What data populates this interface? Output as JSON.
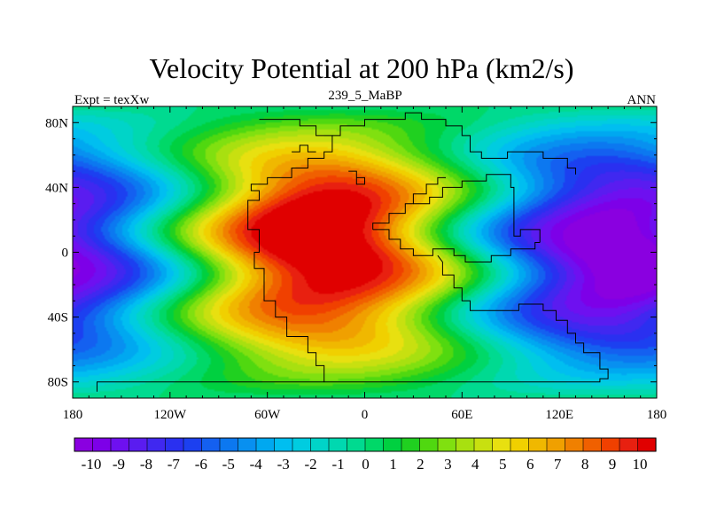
{
  "chart_data": {
    "type": "heatmap",
    "title": "Velocity Potential at 200 hPa (km2/s)",
    "subtitle_left": "Expt = texXw",
    "subtitle_center": "239_5_MaBP",
    "subtitle_right": "ANN",
    "x_range": [
      -180,
      180
    ],
    "y_range": [
      -90,
      90
    ],
    "x_ticks": [
      {
        "value": -180,
        "label": "180"
      },
      {
        "value": -120,
        "label": "120W"
      },
      {
        "value": -60,
        "label": "60W"
      },
      {
        "value": 0,
        "label": "0"
      },
      {
        "value": 60,
        "label": "60E"
      },
      {
        "value": 120,
        "label": "120E"
      },
      {
        "value": 180,
        "label": "180"
      }
    ],
    "y_ticks": [
      {
        "value": 80,
        "label": "80N"
      },
      {
        "value": 40,
        "label": "40N"
      },
      {
        "value": 0,
        "label": "0"
      },
      {
        "value": -40,
        "label": "40S"
      },
      {
        "value": -80,
        "label": "80S"
      }
    ],
    "field": {
      "description_of_peaks_in_data_units": "max near lon -25, lat 20; min near lon 165, lat -5",
      "max_center": {
        "lon": -25,
        "lat": 20,
        "value": 10.5
      },
      "min_center": {
        "lon": 165,
        "lat": -5,
        "value": -10.5
      }
    },
    "colorbar": {
      "ticks": [
        -10,
        -9,
        -8,
        -7,
        -6,
        -5,
        -4,
        -3,
        -2,
        -1,
        0,
        1,
        2,
        3,
        4,
        5,
        6,
        7,
        8,
        9,
        10
      ],
      "labels": [
        "-10",
        "-9",
        "-8",
        "-7",
        "-6",
        "-5",
        "-4",
        "-3",
        "-2",
        "-1",
        "0",
        "1",
        "2",
        "3",
        "4",
        "5",
        "6",
        "7",
        "8",
        "9",
        "10"
      ],
      "colors": [
        "#8a00e0",
        "#7d00e8",
        "#6e10f0",
        "#5a1cf0",
        "#4028f0",
        "#2a30f0",
        "#1c40f0",
        "#1460f0",
        "#0c78f0",
        "#0890f0",
        "#00a8f0",
        "#00bef0",
        "#00cce0",
        "#00d4c8",
        "#00d8b0",
        "#00da90",
        "#00d868",
        "#00d040",
        "#20d020",
        "#50d810",
        "#80e010",
        "#a8e010",
        "#c8e010",
        "#e8e010",
        "#f0d000",
        "#f0b800",
        "#f0a000",
        "#f08000",
        "#f06000",
        "#f04000",
        "#e82010",
        "#e00000"
      ]
    }
  }
}
